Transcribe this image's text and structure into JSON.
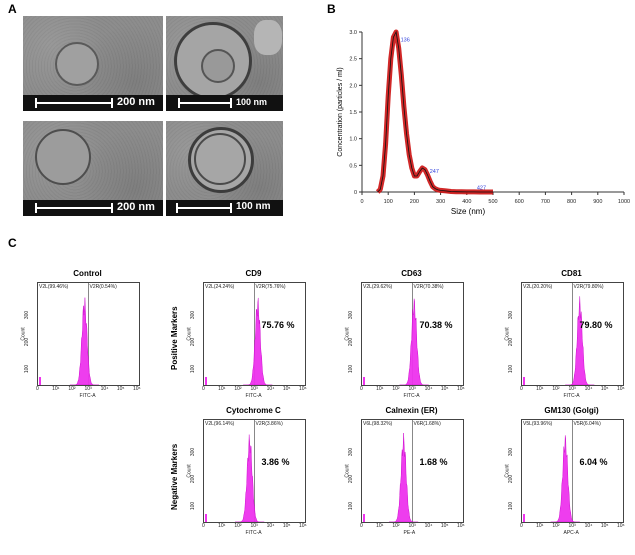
{
  "panels": {
    "a": "A",
    "b": "B",
    "c": "C"
  },
  "em_images": [
    {
      "scale": "200 nm"
    },
    {
      "scale": "100 nm"
    },
    {
      "scale": "200 nm"
    },
    {
      "scale": "100 nm"
    }
  ],
  "chart_data": [
    {
      "type": "line",
      "panel": "B",
      "xlabel": "Size (nm)",
      "ylabel": "Concentration (particles / ml)",
      "xlim": [
        0,
        1000
      ],
      "ylim": [
        0,
        3.0
      ],
      "xticks": [
        0,
        100,
        200,
        300,
        400,
        500,
        600,
        700,
        800,
        900,
        1000
      ],
      "yticks": [
        "0",
        "0.5",
        "1.0",
        "1.5",
        "2.0",
        "2.5",
        "3.0"
      ],
      "series": [
        {
          "color": "#cc1111",
          "x": [
            60,
            70,
            80,
            90,
            100,
            110,
            120,
            130,
            140,
            150,
            160,
            170,
            180,
            190,
            200,
            210,
            220,
            230,
            240,
            250,
            260,
            270,
            280,
            290,
            300,
            320,
            340,
            360,
            380,
            400,
            427,
            450,
            500
          ],
          "y": [
            0,
            0.05,
            0.3,
            0.9,
            1.8,
            2.5,
            2.9,
            3.0,
            2.7,
            2.2,
            1.6,
            1.1,
            0.7,
            0.45,
            0.3,
            0.3,
            0.38,
            0.45,
            0.42,
            0.32,
            0.2,
            0.1,
            0.06,
            0.04,
            0.03,
            0.02,
            0.01,
            0.005,
            0.003,
            0.002,
            0.001,
            0,
            0
          ]
        }
      ],
      "annotations": [
        {
          "text": "136",
          "x": 136,
          "y": 2.82
        },
        {
          "text": "247",
          "x": 247,
          "y": 0.36
        },
        {
          "text": "427",
          "x": 427,
          "y": 0.05
        }
      ]
    }
  ],
  "flow": {
    "positive_label": "Positive Markers",
    "negative_label": "Negative Markers",
    "histograms": [
      {
        "title": "Control",
        "left_gate": "V2L(99.46%)",
        "right_gate": "V2R(0.54%)",
        "pct": "",
        "xlabel": "FITC-A",
        "peak_log": 2.75
      },
      {
        "title": "CD9",
        "left_gate": "V2L(24.24%)",
        "right_gate": "V2R(75.76%)",
        "pct": "75.76 %",
        "xlabel": "FITC-A",
        "peak_log": 3.2
      },
      {
        "title": "CD63",
        "left_gate": "V2L(29.62%)",
        "right_gate": "V2R(70.38%)",
        "pct": "70.38 %",
        "xlabel": "FITC-A",
        "peak_log": 3.1
      },
      {
        "title": "CD81",
        "left_gate": "V2L(20.20%)",
        "right_gate": "V2R(79.80%)",
        "pct": "79.80 %",
        "xlabel": "FITC-A",
        "peak_log": 3.45
      },
      {
        "title": "Cytochrome C",
        "left_gate": "V2L(96.14%)",
        "right_gate": "V2R(3.86%)",
        "pct": "3.86 %",
        "xlabel": "FITC-A",
        "peak_log": 2.7
      },
      {
        "title": "Calnexin (ER)",
        "left_gate": "V6L(98.32%)",
        "right_gate": "V6R(1.68%)",
        "pct": "1.68 %",
        "xlabel": "PE-A",
        "peak_log": 2.45
      },
      {
        "title": "GM130 (Golgi)",
        "left_gate": "V5L(93.96%)",
        "right_gate": "V5R(6.04%)",
        "pct": "6.04 %",
        "xlabel": "APC-A",
        "peak_log": 2.55
      }
    ],
    "yticks": [
      "100",
      "200",
      "300"
    ],
    "xticks": [
      "0",
      "10¹",
      "10²",
      "10³",
      "10⁴",
      "10⁵",
      "10⁶"
    ]
  }
}
